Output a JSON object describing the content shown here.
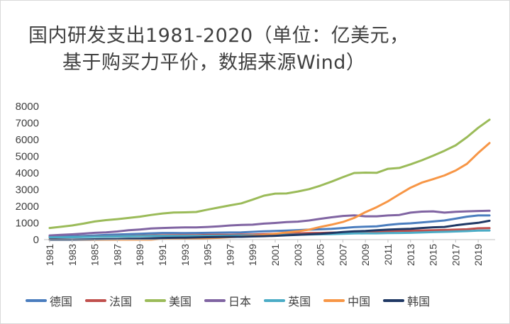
{
  "title_line1": "国内研发支出1981-2020（单位：亿美元，",
  "title_line2": "基于购买力平价，数据来源Wind）",
  "chart_data": {
    "type": "line",
    "title": "国内研发支出1981-2020（单位：亿美元，基于购买力平价，数据来源Wind）",
    "xlabel": "",
    "ylabel": "",
    "ylim": [
      0,
      8000
    ],
    "yticks": [
      0,
      1000,
      2000,
      3000,
      4000,
      5000,
      6000,
      7000,
      8000
    ],
    "x": [
      1981,
      1982,
      1983,
      1984,
      1985,
      1986,
      1987,
      1988,
      1989,
      1990,
      1991,
      1992,
      1993,
      1994,
      1995,
      1996,
      1997,
      1998,
      1999,
      2000,
      2001,
      2002,
      2003,
      2004,
      2005,
      2006,
      2007,
      2008,
      2009,
      2010,
      2011,
      2012,
      2013,
      2014,
      2015,
      2016,
      2017,
      2018,
      2019,
      2020
    ],
    "xtick_labels": [
      "1981",
      "1983",
      "1985",
      "1987",
      "1989",
      "1991",
      "1993",
      "1995",
      "1997",
      "1999",
      "2001",
      "2003",
      "2005",
      "2007",
      "2009",
      "2011",
      "2013",
      "2015",
      "2017",
      "2019"
    ],
    "grid": false,
    "legend_position": "bottom",
    "series": [
      {
        "name": "德国",
        "color": "#4a7dbe",
        "values": [
          180,
          190,
          200,
          220,
          250,
          280,
          310,
          330,
          350,
          380,
          400,
          400,
          390,
          400,
          410,
          420,
          430,
          440,
          470,
          500,
          520,
          540,
          570,
          600,
          620,
          650,
          700,
          750,
          780,
          800,
          880,
          950,
          980,
          1030,
          1090,
          1150,
          1260,
          1380,
          1450,
          1450
        ]
      },
      {
        "name": "法国",
        "color": "#c0504d",
        "values": [
          120,
          140,
          150,
          170,
          180,
          190,
          200,
          210,
          230,
          250,
          260,
          270,
          270,
          270,
          280,
          290,
          290,
          300,
          310,
          330,
          350,
          370,
          380,
          390,
          400,
          420,
          430,
          450,
          480,
          490,
          500,
          520,
          530,
          550,
          560,
          580,
          600,
          620,
          680,
          690
        ]
      },
      {
        "name": "美国",
        "color": "#9bbb59",
        "values": [
          700,
          770,
          850,
          960,
          1090,
          1170,
          1230,
          1300,
          1380,
          1480,
          1570,
          1630,
          1640,
          1660,
          1800,
          1930,
          2060,
          2180,
          2400,
          2640,
          2760,
          2770,
          2890,
          3030,
          3240,
          3480,
          3750,
          4000,
          4020,
          4010,
          4250,
          4300,
          4520,
          4760,
          5040,
          5330,
          5660,
          6150,
          6710,
          7200
        ]
      },
      {
        "name": "日本",
        "color": "#8064a2",
        "values": [
          250,
          290,
          320,
          360,
          410,
          440,
          490,
          560,
          610,
          670,
          700,
          720,
          730,
          730,
          760,
          800,
          850,
          880,
          900,
          960,
          1000,
          1050,
          1080,
          1150,
          1250,
          1340,
          1420,
          1460,
          1400,
          1400,
          1450,
          1480,
          1620,
          1680,
          1700,
          1620,
          1670,
          1700,
          1720,
          1730
        ]
      },
      {
        "name": "英国",
        "color": "#4bacc6",
        "values": [
          140,
          145,
          150,
          160,
          170,
          180,
          190,
          200,
          210,
          220,
          220,
          220,
          225,
          225,
          230,
          235,
          240,
          250,
          260,
          270,
          280,
          290,
          300,
          310,
          320,
          330,
          350,
          370,
          380,
          380,
          390,
          400,
          410,
          430,
          450,
          470,
          490,
          510,
          540,
          550
        ]
      },
      {
        "name": "中国",
        "color": "#f79646",
        "values": [
          0,
          0,
          0,
          0,
          0,
          0,
          0,
          0,
          0,
          0,
          50,
          60,
          70,
          80,
          90,
          110,
          150,
          180,
          220,
          280,
          350,
          430,
          500,
          600,
          760,
          900,
          1060,
          1300,
          1650,
          1950,
          2300,
          2720,
          3120,
          3420,
          3630,
          3850,
          4150,
          4550,
          5200,
          5800
        ]
      },
      {
        "name": "韩国",
        "color": "#1f3864",
        "values": [
          0,
          0,
          0,
          10,
          20,
          30,
          40,
          50,
          60,
          80,
          100,
          110,
          120,
          130,
          150,
          160,
          170,
          170,
          190,
          210,
          230,
          260,
          290,
          320,
          350,
          400,
          460,
          500,
          520,
          560,
          600,
          630,
          650,
          700,
          740,
          760,
          860,
          940,
          1010,
          1130
        ]
      }
    ]
  }
}
